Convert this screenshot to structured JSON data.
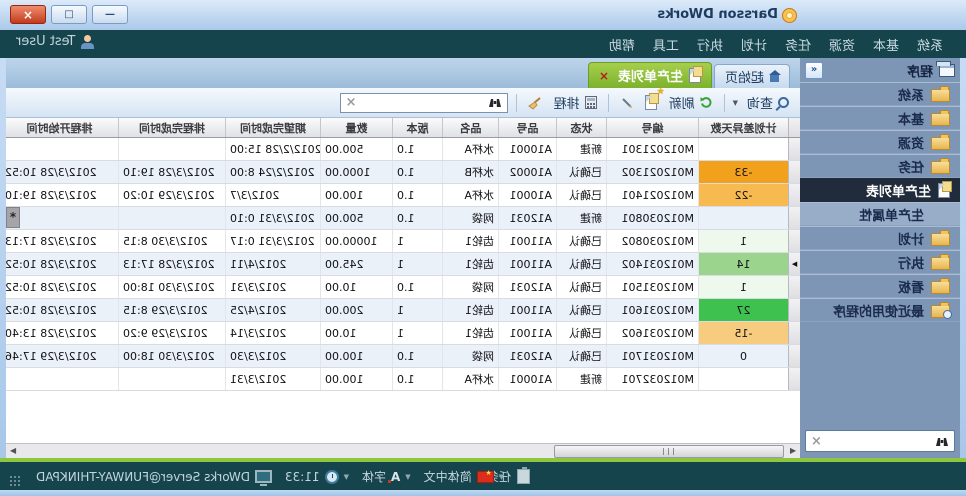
{
  "window": {
    "title": "Darsson DWorks",
    "buttons": {
      "minimize": "—",
      "maximize": "□",
      "close": "×"
    }
  },
  "menubar": {
    "items": [
      "系统",
      "基本",
      "资源",
      "任务",
      "计划",
      "执行",
      "工具",
      "帮助"
    ],
    "user": "Test User"
  },
  "sidebar": {
    "header": "程序",
    "collapse_glyph": "«",
    "items": [
      {
        "label": "系统",
        "icon": "folder"
      },
      {
        "label": "基本",
        "icon": "folder"
      },
      {
        "label": "资源",
        "icon": "folder"
      },
      {
        "label": "任务",
        "icon": "folder"
      },
      {
        "label": "生产单列表",
        "icon": "page",
        "state": "active"
      },
      {
        "label": "生产单属性",
        "icon": "none",
        "state": "selected"
      },
      {
        "label": "计划",
        "icon": "folder"
      },
      {
        "label": "执行",
        "icon": "folder"
      },
      {
        "label": "看板",
        "icon": "folder"
      },
      {
        "label": "最近使用的程序",
        "icon": "folder-clock"
      }
    ],
    "search_placeholder": ""
  },
  "tabs": [
    {
      "label": "起始页",
      "icon": "home",
      "active": false,
      "closable": false
    },
    {
      "label": "生产单列表",
      "icon": "page",
      "active": true,
      "closable": true,
      "close_glyph": "×"
    }
  ],
  "toolbar": {
    "query_label": "查询",
    "refresh_label": "刷新",
    "schedule_label": "排程",
    "search_placeholder": ""
  },
  "grid": {
    "columns": [
      "计划差异天数",
      "编号",
      "状态",
      "品号",
      "品名",
      "版本",
      "数量",
      "期望完成时间",
      "排程完成时间",
      "排程开始时间"
    ],
    "badge_colors": {
      "orange": "#F2A11C",
      "amber": "#F6BA50",
      "paleGreen": "#EFF8EC",
      "lightGreen": "#9BD48D",
      "green": "#3EC14F",
      "peach": "#F7CC7E"
    },
    "rows": [
      {
        "days": "",
        "badge": "",
        "no": "M012021301",
        "status": "新建",
        "item": "A10001",
        "name": "水杯A",
        "ver": "1.0",
        "qty": "500.00",
        "due": "2012/2/28 15:00",
        "sched_end": "",
        "sched_start": ""
      },
      {
        "days": "-33",
        "badge": "orange",
        "no": "M012021302",
        "status": "已确认",
        "item": "A10002",
        "name": "水杯B",
        "ver": "1.0",
        "qty": "1000.00",
        "due": "2012/2/24 8:00",
        "sched_end": "2012/3/28 19:10",
        "sched_start": "2012/3/28 10:52"
      },
      {
        "days": "-22",
        "badge": "amber",
        "no": "M012021401",
        "status": "已确认",
        "item": "A10001",
        "name": "水杯A",
        "ver": "1.0",
        "qty": "100.00",
        "due": "2012/3/7",
        "sched_end": "2012/3/29 10:20",
        "sched_start": "2012/3/28 19:10"
      },
      {
        "days": "",
        "badge": "",
        "no": "M012030801",
        "status": "新建",
        "item": "A12031",
        "name": "网袋",
        "ver": "1.0",
        "qty": "500.00",
        "due": "2012/3/31 0:10",
        "sched_end": "",
        "sched_start": "",
        "marker": "*"
      },
      {
        "days": "1",
        "badge": "paleGreen",
        "no": "M012030802",
        "status": "已确认",
        "item": "A11001",
        "name": "齿轮1",
        "ver": "1",
        "qty": "10000.00",
        "due": "2012/3/31 0:17",
        "sched_end": "2012/3/30 8:15",
        "sched_start": "2012/3/28 17:13"
      },
      {
        "days": "14",
        "badge": "lightGreen",
        "no": "M012031402",
        "status": "已确认",
        "item": "A11001",
        "name": "齿轮1",
        "ver": "1",
        "qty": "245.00",
        "due": "2012/4/11",
        "sched_end": "2012/3/28 17:13",
        "sched_start": "2012/3/28 10:52",
        "focused": true
      },
      {
        "days": "1",
        "badge": "paleGreen",
        "no": "M012031501",
        "status": "已确认",
        "item": "A12031",
        "name": "网袋",
        "ver": "1.0",
        "qty": "10.00",
        "due": "2012/3/31",
        "sched_end": "2012/3/30 18:00",
        "sched_start": "2012/3/28 10:52"
      },
      {
        "days": "27",
        "badge": "green",
        "no": "M012031601",
        "status": "已确认",
        "item": "A11001",
        "name": "齿轮1",
        "ver": "1",
        "qty": "200.00",
        "due": "2012/4/25",
        "sched_end": "2012/3/29 8:15",
        "sched_start": "2012/3/28 10:52"
      },
      {
        "days": "-15",
        "badge": "peach",
        "no": "M012031602",
        "status": "已确认",
        "item": "A11001",
        "name": "齿轮1",
        "ver": "1",
        "qty": "10.00",
        "due": "2012/3/14",
        "sched_end": "2012/3/29 9:20",
        "sched_start": "2012/3/28 13:40"
      },
      {
        "days": "0",
        "badge": "",
        "no": "M012031701",
        "status": "已确认",
        "item": "A12031",
        "name": "网袋",
        "ver": "1.0",
        "qty": "100.00",
        "due": "2012/3/30",
        "sched_end": "2012/3/30 18:00",
        "sched_start": "2012/3/29 17:46"
      },
      {
        "days": "",
        "badge": "",
        "no": "M012032701",
        "status": "新建",
        "item": "A10001",
        "name": "水杯A",
        "ver": "1.0",
        "qty": "100.00",
        "due": "2012/3/31",
        "sched_end": "",
        "sched_start": ""
      }
    ]
  },
  "statusbar": {
    "task_label": "任务",
    "language_label": "简体中文",
    "font_label": "字体",
    "font_glyph": "A",
    "time": "11:33",
    "server": "DWorks Server@FUNWAY-THINKPAD"
  },
  "colors": {
    "menubar_bg": "#16444C",
    "statusbar_bg": "#16444C",
    "sidebar_bg": "#7E96B5",
    "active_tab_green": "#8CC63F",
    "active_item_bg": "#202B3B",
    "titlebar_gradient_top": "#DCEAF9",
    "close_button_red": "#C23B1E"
  }
}
